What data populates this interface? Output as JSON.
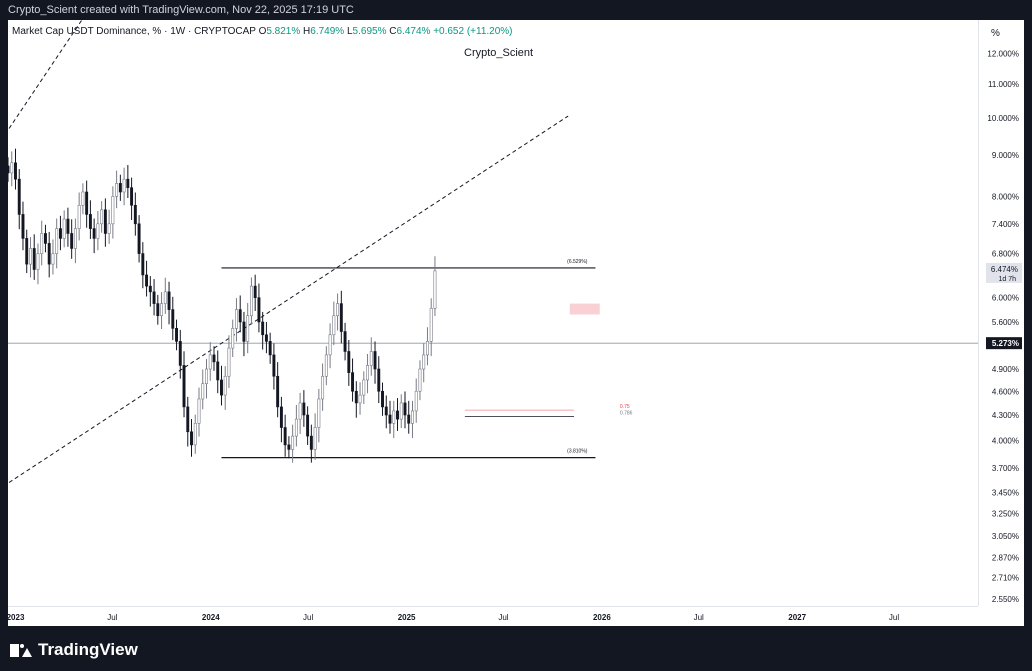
{
  "header": {
    "credit": "Crypto_Scient created with TradingView.com, Nov 22, 2025 17:19 UTC"
  },
  "legend": {
    "symbol": "Market Cap USDT Dominance, % · 1W · CRYPTOCAP",
    "o_label": "O",
    "o_value": "5.821%",
    "h_label": "H",
    "h_value": "6.749%",
    "l_label": "L",
    "l_value": "5.695%",
    "c_label": "C",
    "c_value": "6.474%",
    "change": "+0.652 (+11.20%)"
  },
  "watermark": "Crypto_Scient",
  "footer": {
    "brand": "TradingView"
  },
  "colors": {
    "up": "#089981",
    "down": "#131722",
    "up_body": "#ffffff",
    "up_wick": "#787b86",
    "price_tag": "#131722",
    "zone": "#f7c5cb"
  },
  "chart_data": {
    "type": "candlestick",
    "timeframe": "1W",
    "y_scale": "log",
    "y_unit": "%",
    "y_range": [
      2.5,
      13.2
    ],
    "y_ticks": [
      "12.000%",
      "11.000%",
      "10.000%",
      "9.000%",
      "8.000%",
      "7.400%",
      "6.800%",
      "6.000%",
      "5.600%",
      "4.900%",
      "4.600%",
      "4.300%",
      "4.000%",
      "3.700%",
      "3.450%",
      "3.250%",
      "3.050%",
      "2.870%",
      "2.710%",
      "2.550%"
    ],
    "unit_label": "%",
    "x_ticks": [
      {
        "label": "2023",
        "date": "2023-01-01"
      },
      {
        "label": "Jul",
        "date": "2023-07-01"
      },
      {
        "label": "2024",
        "date": "2024-01-01"
      },
      {
        "label": "Jul",
        "date": "2024-07-01"
      },
      {
        "label": "2025",
        "date": "2025-01-01"
      },
      {
        "label": "Jul",
        "date": "2025-07-01"
      },
      {
        "label": "2026",
        "date": "2026-01-01"
      },
      {
        "label": "Jul",
        "date": "2026-07-01"
      },
      {
        "label": "2027",
        "date": "2027-01-01"
      },
      {
        "label": "Jul",
        "date": "2027-07-01"
      }
    ],
    "x_range": [
      "2022-12-18",
      "2027-12-05"
    ],
    "closes": [
      8.55,
      8.8,
      8.4,
      7.6,
      7.1,
      6.6,
      6.9,
      6.5,
      6.8,
      7.2,
      7.0,
      6.6,
      6.8,
      7.3,
      7.1,
      7.5,
      7.2,
      6.9,
      7.3,
      7.8,
      8.1,
      7.6,
      7.3,
      7.1,
      7.4,
      7.7,
      7.2,
      7.4,
      8.0,
      8.3,
      8.1,
      8.4,
      8.2,
      7.8,
      7.4,
      6.8,
      6.4,
      6.2,
      6.1,
      5.9,
      5.7,
      5.9,
      6.1,
      5.8,
      5.5,
      5.3,
      4.95,
      4.4,
      4.1,
      3.95,
      4.2,
      4.5,
      4.7,
      4.9,
      5.1,
      5.0,
      4.75,
      4.55,
      4.8,
      5.2,
      5.5,
      5.8,
      5.6,
      5.3,
      5.7,
      6.2,
      6.0,
      5.6,
      5.4,
      5.3,
      5.1,
      4.8,
      4.4,
      4.15,
      3.95,
      3.9,
      4.05,
      4.25,
      4.45,
      4.3,
      4.05,
      3.9,
      4.15,
      4.5,
      4.8,
      5.1,
      5.4,
      5.7,
      5.9,
      5.45,
      5.15,
      4.85,
      4.6,
      4.45,
      4.55,
      4.75,
      4.95,
      5.15,
      4.9,
      4.6,
      4.4,
      4.3,
      4.2,
      4.35,
      4.25,
      4.45,
      4.3,
      4.2,
      4.35,
      4.6,
      4.9,
      5.1,
      5.3,
      5.821,
      6.474
    ],
    "first_week": "2022-12-18",
    "last": {
      "open": 5.821,
      "high": 6.749,
      "low": 5.695,
      "close": 6.474
    },
    "price_tag": {
      "value": "6.474%",
      "sub": "1d 7h",
      "y": 6.474
    },
    "crosshair": {
      "value": "5.273%",
      "y": 5.273
    },
    "horizontal_levels": [
      {
        "y": 6.529,
        "label": "(6.529%)",
        "from": "2024-01-21",
        "to": "2025-12-20"
      },
      {
        "y": 3.81,
        "label": "(3.810%)",
        "from": "2024-01-21",
        "to": "2025-12-20"
      }
    ],
    "fib_levels": [
      {
        "y": 4.36,
        "label": "0.75",
        "from": "2025-04-20",
        "to": "2025-11-10"
      },
      {
        "y": 4.28,
        "label": "0.786",
        "from": "2025-04-20",
        "to": "2025-11-10"
      }
    ],
    "zone": {
      "from": "2025-11-02",
      "to": "2025-12-28",
      "y1": 5.72,
      "y2": 5.9
    },
    "trend_lines": [
      {
        "from": "2022-12-20",
        "y1": 9.7,
        "to": "2023-11-26",
        "y2": 21.0
      },
      {
        "from": "2022-12-20",
        "y1": 3.55,
        "to": "2025-10-30",
        "y2": 10.05
      }
    ]
  }
}
